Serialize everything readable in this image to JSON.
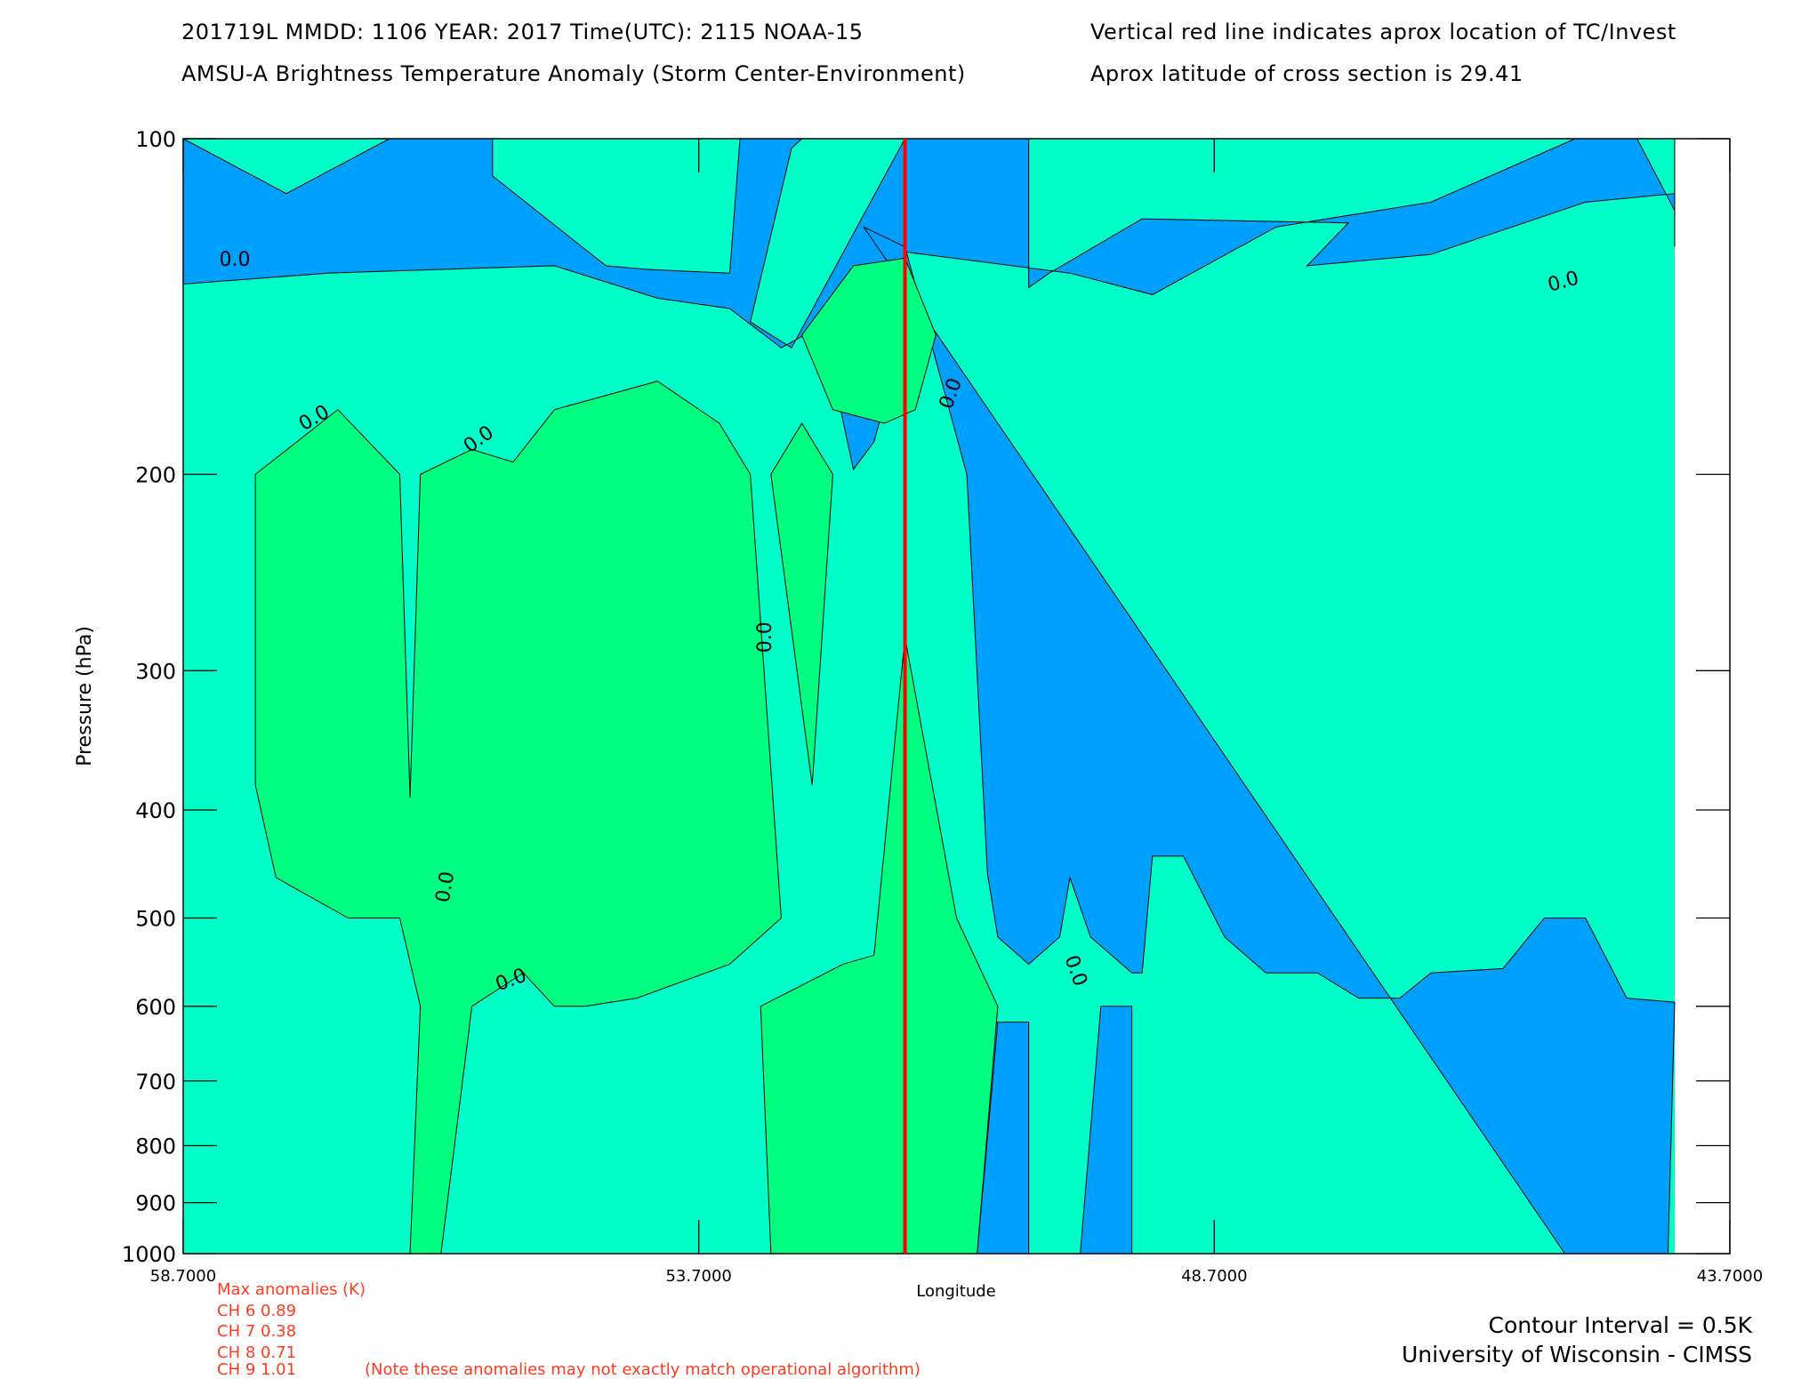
{
  "header": {
    "line1_left": "201719L  MMDD: 1106 YEAR: 2017 Time(UTC): 2115 NOAA-15",
    "line2_left": "AMSU-A Brightness Temperature Anomaly (Storm Center-Environment)",
    "line1_right": "Vertical red line indicates aprox location of TC/Invest",
    "line2_right": "Aprox latitude of cross section is 29.41"
  },
  "footer": {
    "contour_interval": "Contour Interval = 0.5K",
    "credit": "University of Wisconsin - CIMSS"
  },
  "anomalies": {
    "title": "Max anomalies (K)",
    "channels": [
      "CH 6  0.89",
      "CH 7  0.38",
      "CH 8  0.71",
      "CH 9  1.01"
    ],
    "note": "(Note these anomalies may not exactly match operational algorithm)"
  },
  "colors": {
    "blue": "#00a0ff",
    "cyan": "#00ffc8",
    "green": "#00ff80",
    "storm_line": "#ff0000",
    "anomaly_text": "#ff3b1f"
  },
  "chart_data": {
    "type": "heatmap",
    "subtype": "contour cross-section",
    "xlabel": "Longitude",
    "ylabel": "Pressure (hPa)",
    "xlim": [
      58.7,
      43.7
    ],
    "ylim": [
      1000,
      100
    ],
    "y_scale": "log",
    "x_ticks": [
      "58.7000",
      "53.7000",
      "48.7000",
      "43.7000"
    ],
    "y_ticks": [
      "100",
      "200",
      "300",
      "400",
      "500",
      "600",
      "700",
      "800",
      "900",
      "1000"
    ],
    "y_tick_values": [
      100,
      200,
      300,
      400,
      500,
      600,
      700,
      800,
      900,
      1000
    ],
    "storm_longitude": 51.7,
    "contour_labels": [
      "0.0",
      "0.0",
      "0.0",
      "0.0",
      "0.0",
      "0.0",
      "0.0",
      "0.0",
      "0.0"
    ],
    "regions": [
      {
        "level": "blue",
        "points": [
          [
            58.7,
            100
          ],
          [
            57.7,
            112
          ],
          [
            56.7,
            100
          ],
          [
            55.7,
            100
          ],
          [
            55.7,
            108
          ],
          [
            54.6,
            130
          ],
          [
            54.2,
            131
          ],
          [
            53.4,
            132
          ],
          [
            53.3,
            100
          ],
          [
            52.7,
            100
          ],
          [
            52.8,
            102
          ],
          [
            53.2,
            146
          ],
          [
            52.8,
            154
          ],
          [
            51.7,
            100
          ],
          [
            50.5,
            100
          ],
          [
            50.5,
            136
          ],
          [
            50.3,
            132
          ],
          [
            49.4,
            118
          ],
          [
            47.4,
            119
          ],
          [
            47.8,
            130
          ],
          [
            46.6,
            127
          ],
          [
            45.1,
            114
          ],
          [
            44.2,
            112
          ],
          [
            43.7,
            100
          ],
          [
            43.7,
            125
          ],
          [
            44.2,
            116
          ],
          [
            44.6,
            100
          ],
          [
            45.2,
            100
          ],
          [
            46.6,
            114
          ],
          [
            48.1,
            120
          ],
          [
            49.3,
            138
          ],
          [
            50.1,
            132
          ],
          [
            51.8,
            126
          ],
          [
            51.7,
            148
          ],
          [
            52.0,
            187
          ],
          [
            52.2,
            198
          ],
          [
            52.5,
            147
          ],
          [
            52.9,
            154
          ],
          [
            53.4,
            142
          ],
          [
            54.1,
            139
          ],
          [
            55.1,
            130
          ],
          [
            57.3,
            132
          ],
          [
            58.7,
            135
          ]
        ]
      },
      {
        "level": "blue",
        "points": [
          [
            52.1,
            120
          ],
          [
            51.7,
            125
          ],
          [
            51.1,
            200
          ],
          [
            50.9,
            456
          ],
          [
            50.8,
            520
          ],
          [
            50.5,
            550
          ],
          [
            50.2,
            520
          ],
          [
            50.1,
            460
          ],
          [
            49.9,
            520
          ],
          [
            49.5,
            560
          ],
          [
            49.4,
            560
          ],
          [
            49.3,
            440
          ],
          [
            49.0,
            440
          ],
          [
            48.6,
            520
          ],
          [
            48.2,
            560
          ],
          [
            47.7,
            560
          ],
          [
            47.3,
            590
          ],
          [
            46.9,
            590
          ],
          [
            46.6,
            560
          ],
          [
            45.9,
            555
          ],
          [
            45.5,
            500
          ],
          [
            45.1,
            500
          ],
          [
            44.7,
            590
          ],
          [
            44.2,
            595
          ],
          [
            44.3,
            1000
          ],
          [
            49.5,
            1000
          ],
          [
            49.5,
            600
          ],
          [
            49.8,
            600
          ],
          [
            50.0,
            1000
          ],
          [
            50.5,
            1000
          ],
          [
            50.5,
            620
          ],
          [
            50.8,
            620
          ],
          [
            51.0,
            1000
          ],
          [
            45.3,
            1000
          ]
        ]
      },
      {
        "level": "green",
        "points": [
          [
            58.0,
            200
          ],
          [
            57.2,
            175
          ],
          [
            56.6,
            200
          ],
          [
            56.5,
            390
          ],
          [
            56.4,
            200
          ],
          [
            55.9,
            190
          ],
          [
            55.5,
            195
          ],
          [
            55.1,
            175
          ],
          [
            54.1,
            165
          ],
          [
            53.5,
            180
          ],
          [
            53.2,
            200
          ],
          [
            52.9,
            500
          ],
          [
            53.4,
            550
          ],
          [
            54.3,
            590
          ],
          [
            54.8,
            600
          ],
          [
            55.1,
            600
          ],
          [
            55.4,
            560
          ],
          [
            55.9,
            600
          ],
          [
            56.2,
            1000
          ],
          [
            56.5,
            1000
          ],
          [
            56.4,
            600
          ],
          [
            56.6,
            500
          ],
          [
            57.1,
            500
          ],
          [
            57.8,
            460
          ],
          [
            58.0,
            380
          ]
        ]
      },
      {
        "level": "green",
        "points": [
          [
            53.1,
            600
          ],
          [
            52.3,
            550
          ],
          [
            52.0,
            540
          ],
          [
            51.7,
            280
          ],
          [
            51.2,
            500
          ],
          [
            50.8,
            600
          ],
          [
            51.0,
            1000
          ],
          [
            53.0,
            1000
          ]
        ]
      },
      {
        "level": "green",
        "points": [
          [
            52.2,
            130
          ],
          [
            51.7,
            128
          ],
          [
            51.4,
            150
          ],
          [
            51.6,
            175
          ],
          [
            51.9,
            180
          ],
          [
            52.4,
            175
          ],
          [
            52.7,
            150
          ]
        ]
      },
      {
        "level": "green",
        "points": [
          [
            53.0,
            200
          ],
          [
            52.7,
            180
          ],
          [
            52.4,
            200
          ],
          [
            52.6,
            380
          ]
        ]
      }
    ]
  }
}
